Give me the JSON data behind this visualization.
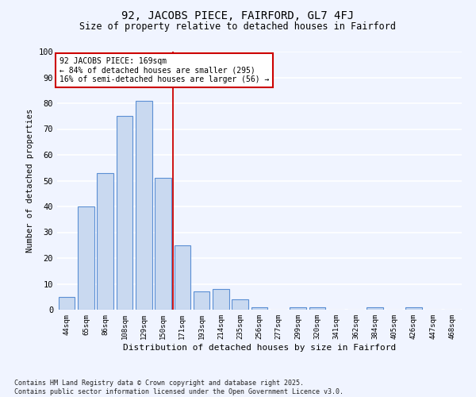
{
  "title": "92, JACOBS PIECE, FAIRFORD, GL7 4FJ",
  "subtitle": "Size of property relative to detached houses in Fairford",
  "xlabel": "Distribution of detached houses by size in Fairford",
  "ylabel": "Number of detached properties",
  "bar_color": "#c9d9f0",
  "bar_edge_color": "#5b8fd4",
  "bg_color": "#f0f4ff",
  "grid_color": "#ffffff",
  "categories": [
    "44sqm",
    "65sqm",
    "86sqm",
    "108sqm",
    "129sqm",
    "150sqm",
    "171sqm",
    "193sqm",
    "214sqm",
    "235sqm",
    "256sqm",
    "277sqm",
    "299sqm",
    "320sqm",
    "341sqm",
    "362sqm",
    "384sqm",
    "405sqm",
    "426sqm",
    "447sqm",
    "468sqm"
  ],
  "values": [
    5,
    40,
    53,
    75,
    81,
    51,
    25,
    7,
    8,
    4,
    1,
    0,
    1,
    1,
    0,
    0,
    1,
    0,
    1,
    0,
    0
  ],
  "ylim": [
    0,
    100
  ],
  "yticks": [
    0,
    10,
    20,
    30,
    40,
    50,
    60,
    70,
    80,
    90,
    100
  ],
  "annotation_text": "92 JACOBS PIECE: 169sqm\n← 84% of detached houses are smaller (295)\n16% of semi-detached houses are larger (56) →",
  "vline_x": 5.5,
  "footnote": "Contains HM Land Registry data © Crown copyright and database right 2025.\nContains public sector information licensed under the Open Government Licence v3.0."
}
